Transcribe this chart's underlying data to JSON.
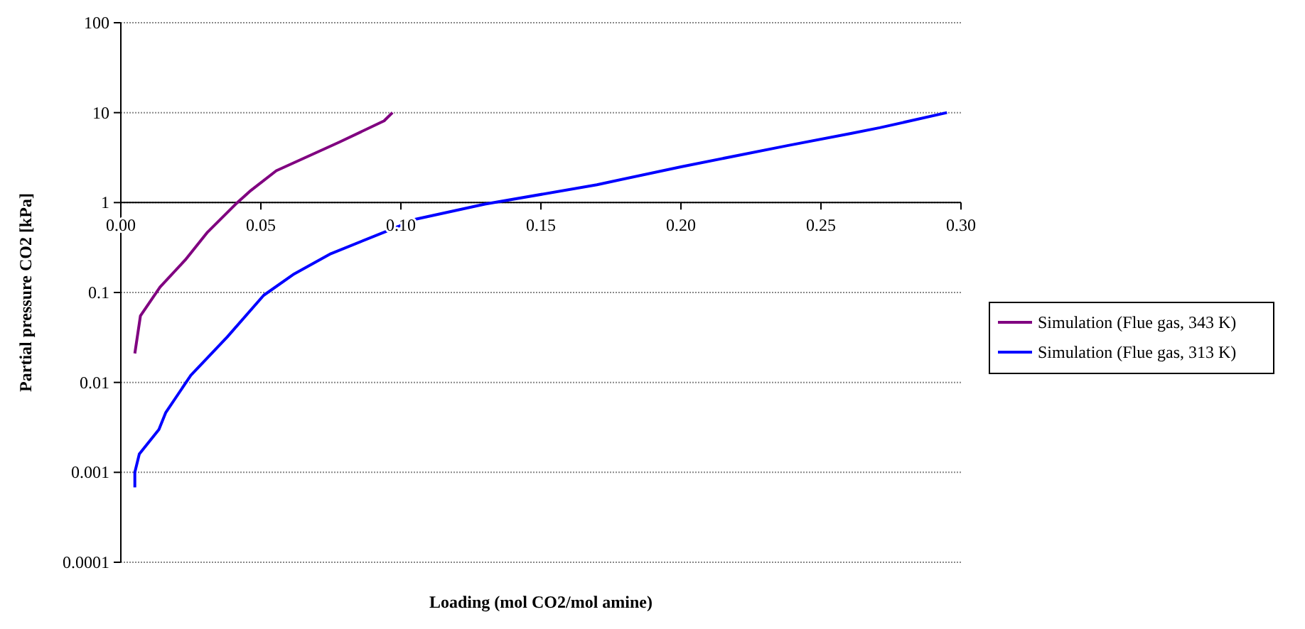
{
  "chart_data": {
    "type": "line",
    "xlabel": "Loading (mol CO2/mol amine)",
    "ylabel": "Partial pressure CO2 [kPa]",
    "log": "y",
    "grid": "y",
    "legend": "right",
    "line_style": "solid",
    "xlim": [
      0,
      0.3
    ],
    "xticks": [
      {
        "value": 0,
        "label": "0.00"
      },
      {
        "value": 0.05,
        "label": "0.05"
      },
      {
        "value": 0.1,
        "label": "0.10"
      },
      {
        "value": 0.15,
        "label": "0.15"
      },
      {
        "value": 0.2,
        "label": "0.20"
      },
      {
        "value": 0.25,
        "label": "0.25"
      },
      {
        "value": 0.3,
        "label": "0.30"
      }
    ],
    "ylim": [
      0.0001,
      100
    ],
    "yticks": [
      0.0001,
      0.001,
      0.01,
      0.1,
      1,
      10,
      100
    ],
    "series": [
      {
        "name": "Simulation (Flue gas, 343 K)",
        "color": "#800080",
        "x": [
          0.005,
          0.007,
          0.014,
          0.023,
          0.031,
          0.041,
          0.046,
          0.0555,
          0.078,
          0.094,
          0.097
        ],
        "values": [
          0.021,
          0.055,
          0.115,
          0.23,
          0.47,
          0.96,
          1.33,
          2.26,
          4.7,
          8.1,
          10
        ]
      },
      {
        "name": "Simulation (Flue gas, 313 K)",
        "color": "#0000ff",
        "x": [
          0.005,
          0.005,
          0.0066,
          0.0136,
          0.016,
          0.025,
          0.038,
          0.051,
          0.0615,
          0.075,
          0.097,
          0.105,
          0.13,
          0.17,
          0.2,
          0.238,
          0.261,
          0.271,
          0.295
        ],
        "values": [
          0.00068,
          0.001,
          0.0016,
          0.003,
          0.0046,
          0.012,
          0.032,
          0.093,
          0.158,
          0.27,
          0.51,
          0.65,
          0.96,
          1.58,
          2.5,
          4.3,
          5.9,
          6.8,
          10
        ]
      }
    ]
  }
}
